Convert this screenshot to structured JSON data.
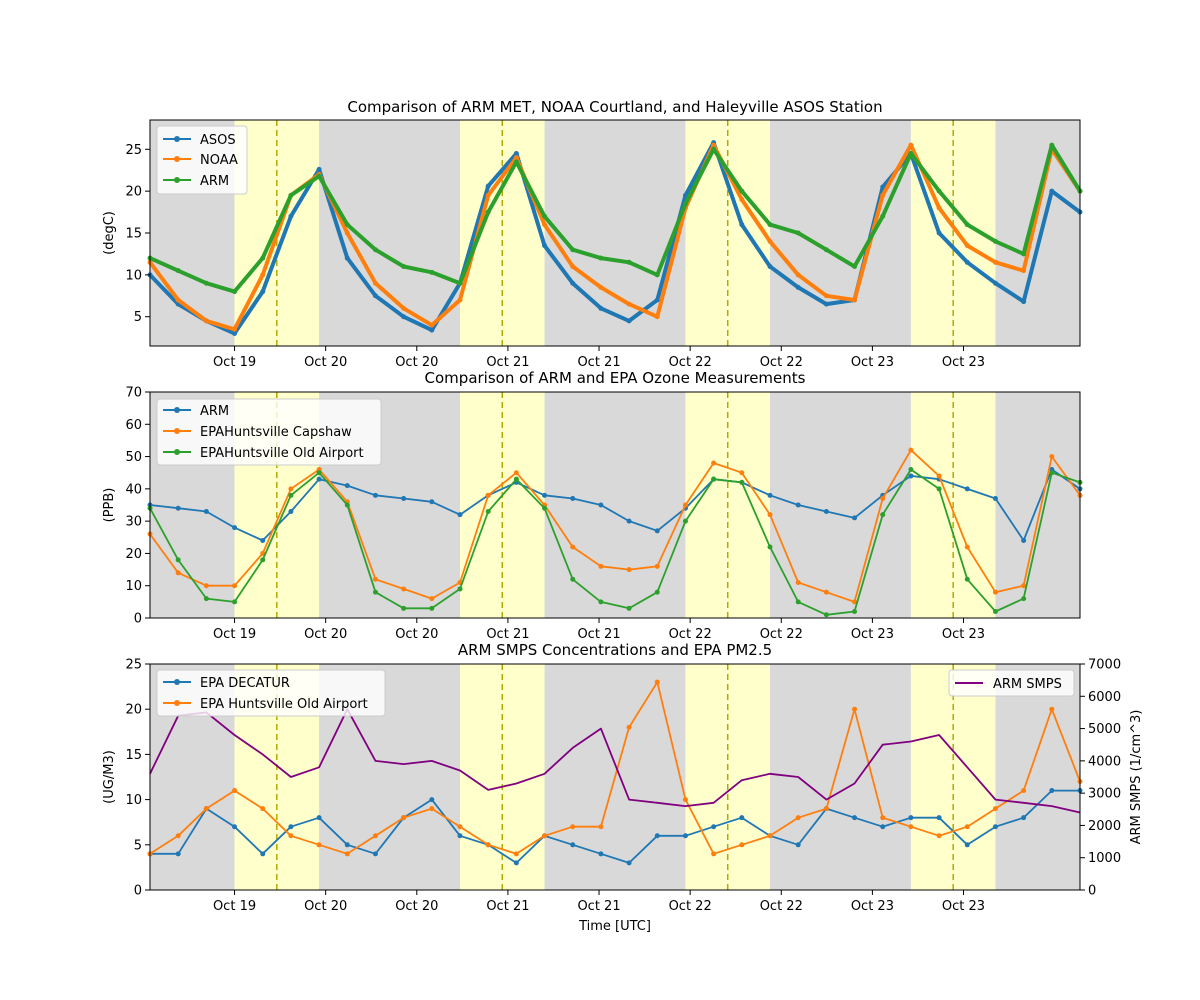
{
  "figure": {
    "background": "#ffffff",
    "night_color": "#d9d9d9",
    "day_color": "#ffffcc",
    "noon_line_color": "#b5a800",
    "x_tick_labels": [
      "Oct 19",
      "Oct 20",
      "Oct 20",
      "Oct 21",
      "Oct 21",
      "Oct 22",
      "Oct 22",
      "Oct 23",
      "Oct 23"
    ],
    "x_label": "Time [UTC]"
  },
  "chart_data": [
    {
      "type": "line",
      "title": "Comparison of ARM MET, NOAA Courtland, and Haleyville ASOS Station",
      "ylabel": "(degC)",
      "ylim": [
        1.5,
        28.5
      ],
      "yticks": [
        5,
        10,
        15,
        20,
        25
      ],
      "x_units": "hours from first tick (Oct 19)",
      "xlim": [
        -9,
        90
      ],
      "legend": "upper-left",
      "grid": false,
      "series": [
        {
          "name": "ASOS",
          "color": "#1f77b4",
          "x": [
            -9,
            -6,
            -3,
            0,
            3,
            6,
            9,
            12,
            15,
            18,
            21,
            24,
            27,
            30,
            33,
            36,
            39,
            42,
            45,
            48,
            51,
            54,
            57,
            60,
            63,
            66,
            69,
            72,
            75,
            78,
            81,
            84,
            87,
            90
          ],
          "y": [
            10,
            6.5,
            4.5,
            3.0,
            8,
            17,
            22.6,
            12,
            7.5,
            5.0,
            3.4,
            9,
            20.6,
            24.5,
            13.5,
            9.0,
            6.0,
            4.5,
            7,
            19.5,
            25.8,
            16,
            11,
            8.5,
            6.5,
            7,
            20.5,
            24.5,
            15,
            11.5,
            9.0,
            6.8,
            20,
            17.5
          ]
        },
        {
          "name": "NOAA",
          "color": "#ff7f0e",
          "x": [
            -9,
            -6,
            -3,
            0,
            3,
            6,
            9,
            12,
            15,
            18,
            21,
            24,
            27,
            30,
            33,
            36,
            39,
            42,
            45,
            48,
            51,
            54,
            57,
            60,
            63,
            66,
            69,
            72,
            75,
            78,
            81,
            84,
            87,
            90
          ],
          "y": [
            11.5,
            7,
            4.5,
            3.5,
            10,
            19.5,
            22.0,
            15,
            9,
            6.0,
            4.0,
            7,
            19.5,
            24.0,
            16,
            11,
            8.5,
            6.5,
            5,
            18,
            25.5,
            19,
            14,
            10,
            7.5,
            7,
            19.5,
            25.5,
            18,
            13.5,
            11.5,
            10.5,
            25,
            20
          ]
        },
        {
          "name": "ARM",
          "color": "#2ca02c",
          "x": [
            -9,
            -6,
            -3,
            0,
            3,
            6,
            9,
            12,
            15,
            18,
            21,
            24,
            27,
            30,
            33,
            36,
            39,
            42,
            45,
            48,
            51,
            54,
            57,
            60,
            63,
            66,
            69,
            72,
            75,
            78,
            81,
            84,
            87,
            90
          ],
          "y": [
            12,
            10.5,
            9.0,
            8.0,
            12,
            19.5,
            21.8,
            16,
            13,
            11,
            10.3,
            9,
            17.5,
            23.5,
            17,
            13,
            12,
            11.5,
            10,
            18.5,
            25.0,
            20,
            16,
            15,
            13,
            11,
            17,
            24.5,
            20,
            16,
            14,
            12.5,
            25.5,
            20
          ]
        }
      ]
    },
    {
      "type": "line",
      "title": "Comparison of ARM and EPA Ozone Measurements",
      "ylabel": "(PPB)",
      "ylim": [
        0,
        70
      ],
      "yticks": [
        0,
        10,
        20,
        30,
        40,
        50,
        60,
        70
      ],
      "x_units": "hours from first tick (Oct 19)",
      "xlim": [
        -9,
        90
      ],
      "legend": "upper-left",
      "grid": false,
      "series": [
        {
          "name": "ARM",
          "color": "#1f77b4",
          "x": [
            -9,
            -6,
            -3,
            0,
            3,
            6,
            9,
            12,
            15,
            18,
            21,
            24,
            27,
            30,
            33,
            36,
            39,
            42,
            45,
            48,
            51,
            54,
            57,
            60,
            63,
            66,
            69,
            72,
            75,
            78,
            81,
            84,
            87,
            90
          ],
          "y": [
            35,
            34,
            33,
            28,
            24,
            33,
            43,
            41,
            38,
            37,
            36,
            32,
            38,
            42,
            38,
            37,
            35,
            30,
            27,
            34,
            43,
            42,
            38,
            35,
            33,
            31,
            38,
            44,
            43,
            40,
            37,
            24,
            46,
            40
          ]
        },
        {
          "name": "EPAHuntsville Capshaw",
          "color": "#ff7f0e",
          "x": [
            -9,
            -6,
            -3,
            0,
            3,
            6,
            9,
            12,
            15,
            18,
            21,
            24,
            27,
            30,
            33,
            36,
            39,
            42,
            45,
            48,
            51,
            54,
            57,
            60,
            63,
            66,
            69,
            72,
            75,
            78,
            81,
            84,
            87,
            90
          ],
          "y": [
            26,
            14,
            10,
            10,
            20,
            40,
            46,
            36,
            12,
            9,
            6,
            11,
            38,
            45,
            35,
            22,
            16,
            15,
            16,
            35,
            48,
            45,
            32,
            11,
            8,
            5,
            37,
            52,
            44,
            22,
            8,
            10,
            50,
            38
          ]
        },
        {
          "name": "EPAHuntsville Old Airport",
          "color": "#2ca02c",
          "x": [
            -9,
            -6,
            -3,
            0,
            3,
            6,
            9,
            12,
            15,
            18,
            21,
            24,
            27,
            30,
            33,
            36,
            39,
            42,
            45,
            48,
            51,
            54,
            57,
            60,
            63,
            66,
            69,
            72,
            75,
            78,
            81,
            84,
            87,
            90
          ],
          "y": [
            34,
            18,
            6,
            5,
            18,
            38,
            45,
            35,
            8,
            3,
            3,
            9,
            33,
            43,
            34,
            12,
            5,
            3,
            8,
            30,
            43,
            42,
            22,
            5,
            1,
            2,
            32,
            46,
            40,
            12,
            2,
            6,
            45,
            42
          ]
        }
      ]
    },
    {
      "type": "line",
      "title": "ARM SMPS Concentrations and EPA PM2.5",
      "ylabel": "(UG/M3)",
      "ylabel_right": "ARM SMPS (1/cm^3)",
      "ylim": [
        0,
        25
      ],
      "yticks": [
        0,
        5,
        10,
        15,
        20,
        25
      ],
      "ylim_right": [
        0,
        7000
      ],
      "yticks_right": [
        0,
        1000,
        2000,
        3000,
        4000,
        5000,
        6000,
        7000
      ],
      "x_units": "hours from first tick (Oct 19)",
      "xlim": [
        -9,
        90
      ],
      "legend": "upper-left",
      "legend_right": "upper-right",
      "grid": false,
      "series": [
        {
          "name": "EPA DECATUR",
          "color": "#1f77b4",
          "axis": "left",
          "x": [
            -9,
            -6,
            -3,
            0,
            3,
            6,
            9,
            12,
            15,
            18,
            21,
            24,
            27,
            30,
            33,
            36,
            39,
            42,
            45,
            48,
            51,
            54,
            57,
            60,
            63,
            66,
            69,
            72,
            75,
            78,
            81,
            84,
            87,
            90
          ],
          "y": [
            4,
            4,
            9,
            7,
            4,
            7,
            8,
            5,
            4,
            8,
            10,
            6,
            5,
            3,
            6,
            5,
            4,
            3,
            6,
            6,
            7,
            8,
            6,
            5,
            9,
            8,
            7,
            8,
            8,
            5,
            7,
            8,
            11,
            11
          ]
        },
        {
          "name": "EPA Huntsville Old Airport",
          "color": "#ff7f0e",
          "axis": "left",
          "x": [
            -9,
            -6,
            -3,
            0,
            3,
            6,
            9,
            12,
            15,
            18,
            21,
            24,
            27,
            30,
            33,
            36,
            39,
            42,
            45,
            48,
            51,
            54,
            57,
            60,
            63,
            66,
            69,
            72,
            75,
            78,
            81,
            84,
            87,
            90
          ],
          "y": [
            4,
            6,
            9,
            11,
            9,
            6,
            5,
            4,
            6,
            8,
            9,
            7,
            5,
            4,
            6,
            7,
            7,
            18,
            23,
            10,
            4,
            5,
            6,
            8,
            9,
            20,
            8,
            7,
            6,
            7,
            9,
            11,
            20,
            12
          ]
        },
        {
          "name": "ARM SMPS",
          "color": "#800080",
          "axis": "right",
          "x": [
            -9,
            -6,
            -3,
            0,
            3,
            6,
            9,
            12,
            15,
            18,
            21,
            24,
            27,
            30,
            33,
            36,
            39,
            42,
            45,
            48,
            51,
            54,
            57,
            60,
            63,
            66,
            69,
            72,
            75,
            78,
            81,
            84,
            87,
            90
          ],
          "y": [
            3600,
            5400,
            5500,
            4800,
            4200,
            3500,
            3800,
            5600,
            4000,
            3900,
            4000,
            3700,
            3100,
            3300,
            3600,
            4400,
            5000,
            2800,
            2700,
            2600,
            2700,
            3400,
            3600,
            3500,
            2800,
            3300,
            4500,
            4600,
            4800,
            3800,
            2800,
            2700,
            2600,
            2400
          ]
        }
      ]
    }
  ]
}
